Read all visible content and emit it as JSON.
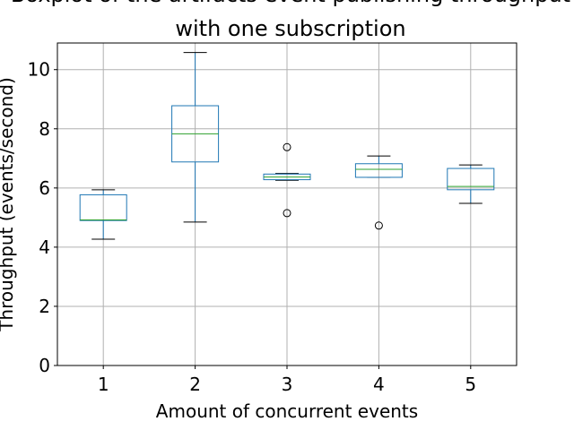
{
  "chart_data": {
    "type": "boxplot",
    "title_lines": [
      "Boxplot of the artifacts event publishing throughput",
      "with one subscription"
    ],
    "xlabel": "Amount of concurrent events",
    "ylabel": "Throughput (events/second)",
    "categories": [
      "1",
      "2",
      "3",
      "4",
      "5"
    ],
    "yticks": [
      0,
      2,
      4,
      6,
      8,
      10
    ],
    "ylim": [
      0,
      10.9
    ],
    "grid": true,
    "boxes": [
      {
        "category": "1",
        "whisker_low": 4.27,
        "q1": 4.9,
        "median": 4.92,
        "q3": 5.77,
        "whisker_high": 5.94,
        "outliers": []
      },
      {
        "category": "2",
        "whisker_low": 4.85,
        "q1": 6.88,
        "median": 7.83,
        "q3": 8.78,
        "whisker_high": 10.58,
        "outliers": []
      },
      {
        "category": "3",
        "whisker_low": 6.26,
        "q1": 6.28,
        "median": 6.37,
        "q3": 6.47,
        "whisker_high": 6.49,
        "outliers": [
          5.15,
          7.38
        ]
      },
      {
        "category": "4",
        "whisker_low": 6.36,
        "q1": 6.36,
        "median": 6.63,
        "q3": 6.82,
        "whisker_high": 7.08,
        "outliers": [
          4.73
        ]
      },
      {
        "category": "5",
        "whisker_low": 5.48,
        "q1": 5.94,
        "median": 6.05,
        "q3": 6.66,
        "whisker_high": 6.78,
        "outliers": []
      }
    ],
    "colors": {
      "box": "#1f77b4",
      "median": "#2ca02c",
      "grid": "#b0b0b0",
      "axis": "#000000",
      "outlier": "#000000"
    }
  }
}
